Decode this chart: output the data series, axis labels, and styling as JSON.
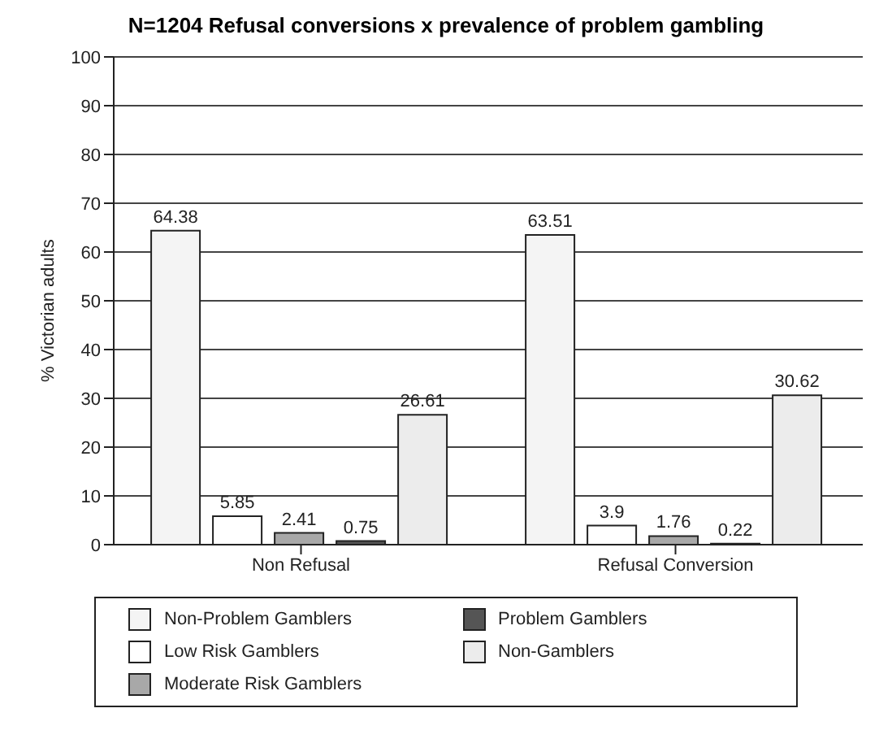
{
  "chart_data": {
    "type": "bar",
    "title": "N=1204 Refusal conversions x prevalence of problem gambling",
    "ylabel": "% Victorian adults",
    "categories": [
      "Non Refusal",
      "Refusal Conversion"
    ],
    "series": [
      {
        "name": "Non-Problem Gamblers",
        "color": "#f4f4f4",
        "values": [
          64.38,
          63.51
        ]
      },
      {
        "name": "Low Risk Gamblers",
        "color": "#ffffff",
        "values": [
          5.85,
          3.9
        ]
      },
      {
        "name": "Moderate Risk Gamblers",
        "color": "#a8a8a8",
        "values": [
          2.41,
          1.76
        ]
      },
      {
        "name": "Problem Gamblers",
        "color": "#555555",
        "values": [
          0.75,
          0.22
        ]
      },
      {
        "name": "Non-Gamblers",
        "color": "#ececec",
        "values": [
          26.61,
          30.62
        ]
      }
    ],
    "ylim": [
      0,
      100
    ],
    "yticks": [
      0,
      10,
      20,
      30,
      40,
      50,
      60,
      70,
      80,
      90,
      100
    ],
    "grid": "y",
    "legend": "bottom",
    "data_labels": true
  }
}
